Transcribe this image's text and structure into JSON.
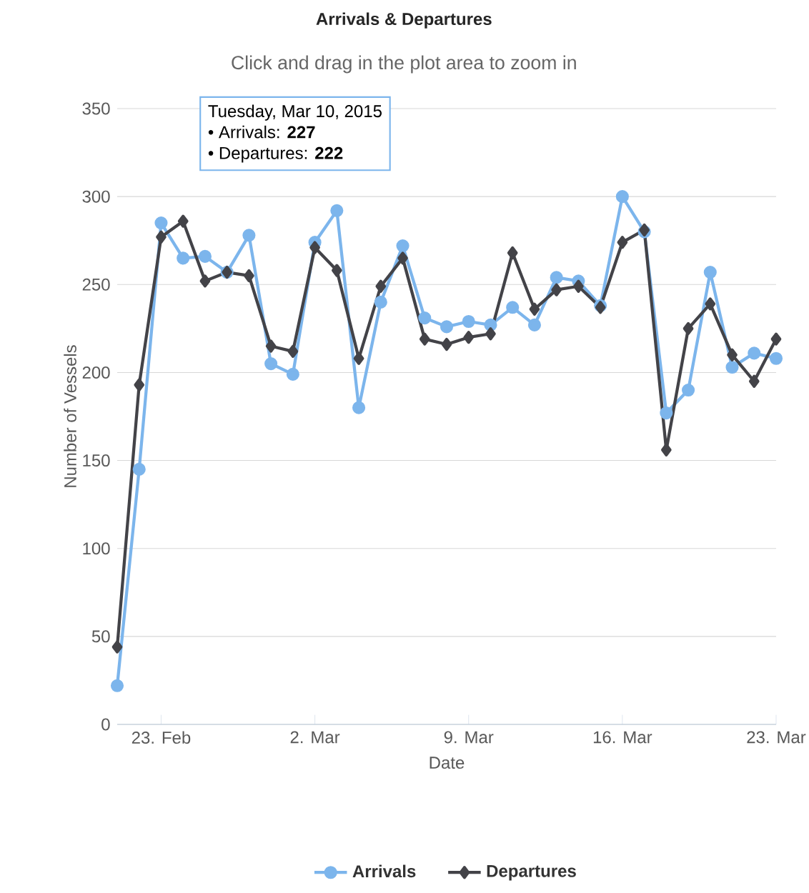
{
  "chart_data": {
    "type": "line",
    "title": "Arrivals & Departures",
    "subtitle": "Click and drag in the plot area to zoom in",
    "xlabel": "Date",
    "ylabel": "Number of Vessels",
    "annotations": [
      "Tuesday, Mar 10, 2015",
      "• Arrivals: **227**",
      "• Departures: **222**"
    ],
    "x": [
      "2015-02-21",
      "2015-02-22",
      "2015-02-23",
      "2015-02-24",
      "2015-02-25",
      "2015-02-26",
      "2015-02-27",
      "2015-02-28",
      "2015-03-01",
      "2015-03-02",
      "2015-03-03",
      "2015-03-04",
      "2015-03-05",
      "2015-03-06",
      "2015-03-07",
      "2015-03-08",
      "2015-03-09",
      "2015-03-10",
      "2015-03-11",
      "2015-03-12",
      "2015-03-13",
      "2015-03-14",
      "2015-03-15",
      "2015-03-16",
      "2015-03-17",
      "2015-03-18",
      "2015-03-19",
      "2015-03-20",
      "2015-03-21",
      "2015-03-22",
      "2015-03-23"
    ],
    "series": [
      {
        "name": "Arrivals",
        "color": "#7cb5ec",
        "marker": "circle",
        "values": [
          22,
          145,
          285,
          265,
          266,
          257,
          278,
          205,
          199,
          274,
          292,
          180,
          240,
          272,
          231,
          226,
          229,
          227,
          237,
          227,
          254,
          252,
          238,
          300,
          280,
          177,
          190,
          257,
          203,
          211,
          208
        ]
      },
      {
        "name": "Departures",
        "color": "#434348",
        "marker": "diamond",
        "values": [
          44,
          193,
          277,
          286,
          252,
          257,
          255,
          215,
          212,
          271,
          258,
          208,
          249,
          265,
          219,
          216,
          220,
          222,
          268,
          236,
          247,
          249,
          237,
          274,
          281,
          156,
          225,
          239,
          210,
          195,
          219
        ]
      }
    ],
    "xlim": [
      "2015-02-21",
      "2015-03-23"
    ],
    "ylim": [
      0,
      350
    ],
    "xticks": [
      {
        "value": "2015-02-23",
        "label": "23. Feb"
      },
      {
        "value": "2015-03-02",
        "label": "2. Mar"
      },
      {
        "value": "2015-03-09",
        "label": "9. Mar"
      },
      {
        "value": "2015-03-16",
        "label": "16. Mar"
      },
      {
        "value": "2015-03-23",
        "label": "23. Mar"
      }
    ],
    "yticks": [
      0,
      50,
      100,
      150,
      200,
      250,
      300,
      350
    ],
    "grid": "y",
    "legend": "bottom"
  }
}
